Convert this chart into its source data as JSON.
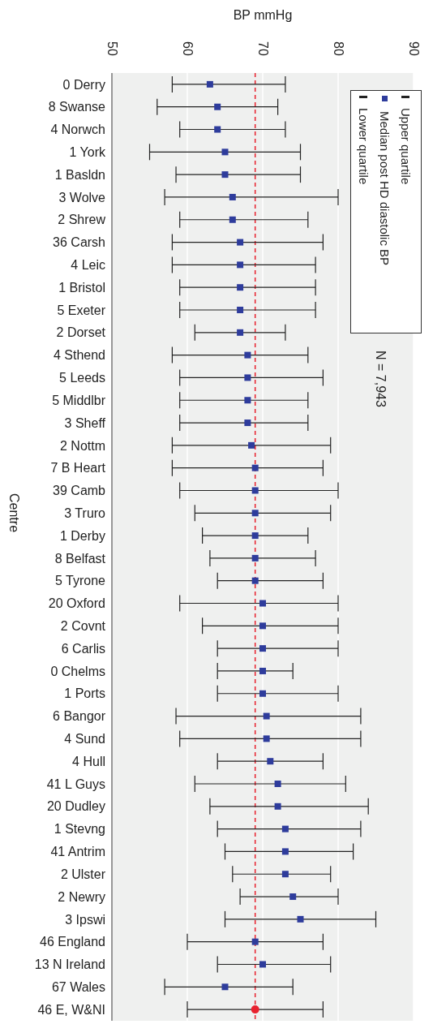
{
  "chart_data": {
    "type": "scatter",
    "orientation": "horizontal",
    "xlabel": "BP mmHg",
    "ylabel": "Centre",
    "annotations": [
      "Upper quartile",
      "Lower quartile",
      "N = 7,943"
    ],
    "categories": [
      "0 Derry",
      "8 Swanse",
      "4 Norwch",
      "1 York",
      "1 Basldn",
      "3 Wolve",
      "2 Shrew",
      "36 Carsh",
      "4 Leic",
      "1 Bristol",
      "5 Exeter",
      "2 Dorset",
      "4 Sthend",
      "5 Leeds",
      "5 Middlbr",
      "3 Sheff",
      "2 Nottm",
      "7 B Heart",
      "39 Camb",
      "3 Truro",
      "1 Derby",
      "8 Belfast",
      "5 Tyrone",
      "20 Oxford",
      "2 Covnt",
      "6 Carlis",
      "0 Chelms",
      "1 Ports",
      "6 Bangor",
      "4 Sund",
      "4 Hull",
      "41 L Guys",
      "20 Dudley",
      "1 Stevng",
      "41 Antrim",
      "2 Ulster",
      "2 Newry",
      "3 Ipswi",
      "46 England",
      "13 N Ireland",
      "67 Wales",
      "46 E, W&NI"
    ],
    "xlim": [
      50,
      90
    ],
    "xticks": [
      50,
      60,
      70,
      80,
      90
    ],
    "grid": "x",
    "legend": "top right",
    "ref_lines": [
      {
        "axis": "x",
        "value": 69,
        "color": "#e8212e",
        "line_style": "dashed"
      }
    ],
    "series": [
      {
        "name": "Median post HD diastolic BP",
        "color": "#2e3c9c",
        "marker": "square",
        "values": [
          63,
          64,
          64,
          65,
          65,
          66,
          66,
          67,
          67,
          67,
          67,
          67,
          68,
          68,
          68,
          68,
          68.5,
          69,
          69,
          69,
          69,
          69,
          69,
          70,
          70,
          70,
          70,
          70,
          70.5,
          70.5,
          71,
          72,
          72,
          73,
          73,
          73,
          74,
          75,
          69,
          70,
          65,
          null
        ],
        "errors": [
          [
            58,
            73
          ],
          [
            56,
            72
          ],
          [
            59,
            73
          ],
          [
            55,
            75
          ],
          [
            58.5,
            75
          ],
          [
            57,
            80
          ],
          [
            59,
            76
          ],
          [
            58,
            78
          ],
          [
            58,
            77
          ],
          [
            59,
            77
          ],
          [
            59,
            77
          ],
          [
            61,
            73
          ],
          [
            58,
            76
          ],
          [
            59,
            78
          ],
          [
            59,
            76
          ],
          [
            59,
            76
          ],
          [
            58,
            79
          ],
          [
            58,
            78
          ],
          [
            59,
            80
          ],
          [
            61,
            79
          ],
          [
            62,
            76
          ],
          [
            63,
            77
          ],
          [
            64,
            78
          ],
          [
            59,
            80
          ],
          [
            62,
            80
          ],
          [
            64,
            80
          ],
          [
            64,
            74
          ],
          [
            64,
            80
          ],
          [
            58.5,
            83
          ],
          [
            59,
            83
          ],
          [
            64,
            78
          ],
          [
            61,
            81
          ],
          [
            63,
            84
          ],
          [
            64,
            83
          ],
          [
            65,
            82
          ],
          [
            66,
            79
          ],
          [
            67,
            80
          ],
          [
            65,
            85
          ],
          [
            60,
            78
          ],
          [
            64,
            79
          ],
          [
            57,
            74
          ],
          null
        ]
      },
      {
        "color": "#e8212e",
        "marker": "circle",
        "values": [
          null,
          null,
          null,
          null,
          null,
          null,
          null,
          null,
          null,
          null,
          null,
          null,
          null,
          null,
          null,
          null,
          null,
          null,
          null,
          null,
          null,
          null,
          null,
          null,
          null,
          null,
          null,
          null,
          null,
          null,
          null,
          null,
          null,
          null,
          null,
          null,
          null,
          null,
          null,
          null,
          null,
          69
        ],
        "errors": [
          null,
          null,
          null,
          null,
          null,
          null,
          null,
          null,
          null,
          null,
          null,
          null,
          null,
          null,
          null,
          null,
          null,
          null,
          null,
          null,
          null,
          null,
          null,
          null,
          null,
          null,
          null,
          null,
          null,
          null,
          null,
          null,
          null,
          null,
          null,
          null,
          null,
          null,
          null,
          null,
          null,
          [
            60,
            78
          ]
        ]
      }
    ]
  }
}
